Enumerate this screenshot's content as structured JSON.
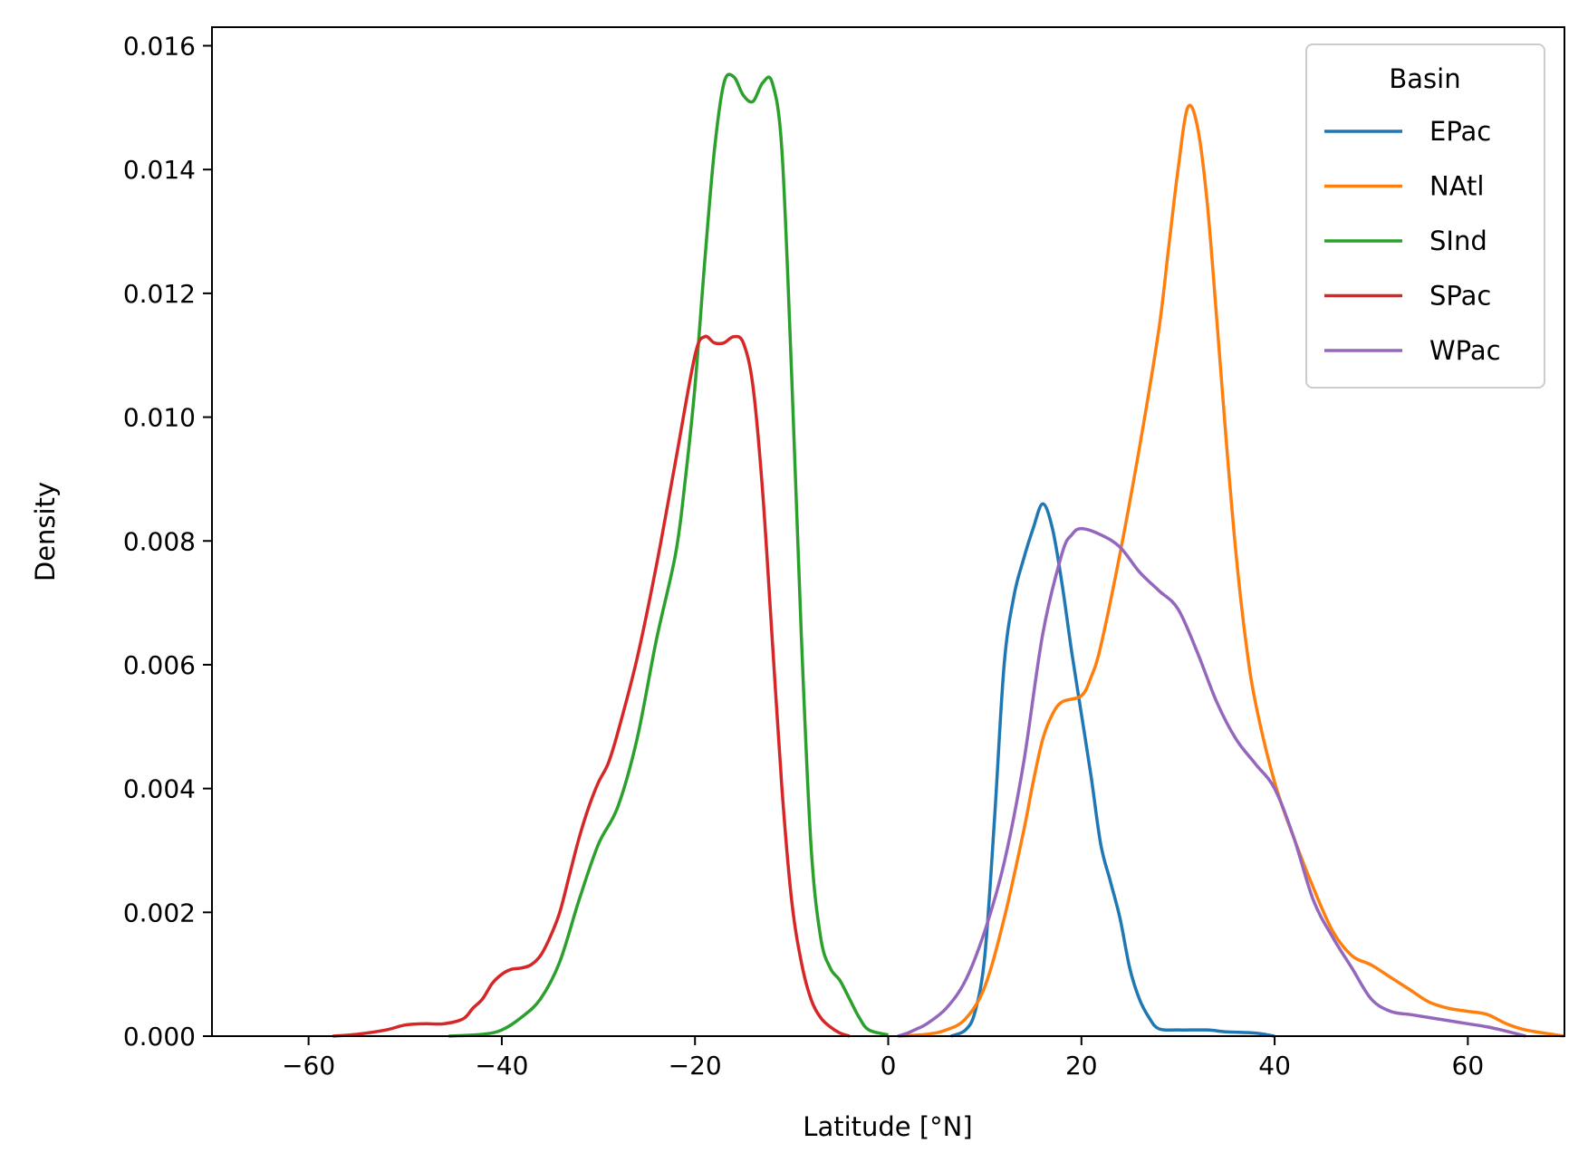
{
  "chart_data": {
    "type": "line",
    "title": "",
    "xlabel": "Latitude [°N]",
    "ylabel": "Density",
    "xlim": [
      -70,
      70
    ],
    "ylim": [
      0,
      0.0163
    ],
    "xticks": [
      -60,
      -40,
      -20,
      0,
      20,
      40,
      60
    ],
    "xtick_labels": [
      "−60",
      "−40",
      "−20",
      "0",
      "20",
      "40",
      "60"
    ],
    "yticks": [
      0,
      0.002,
      0.004,
      0.006,
      0.008,
      0.01,
      0.012,
      0.014,
      0.016
    ],
    "ytick_labels": [
      "0.000",
      "0.002",
      "0.004",
      "0.006",
      "0.008",
      "0.010",
      "0.012",
      "0.014",
      "0.016"
    ],
    "grid": false,
    "legend": {
      "title": "Basin",
      "placement": "top-right"
    },
    "series": [
      {
        "name": "EPac",
        "color": "#1f77b4",
        "points": [
          [
            6.5,
            0
          ],
          [
            8,
            0.0001
          ],
          [
            9,
            0.0004
          ],
          [
            10,
            0.0013
          ],
          [
            11,
            0.0035
          ],
          [
            12,
            0.006
          ],
          [
            13,
            0.0071
          ],
          [
            14,
            0.0077
          ],
          [
            15,
            0.0082
          ],
          [
            16,
            0.0086
          ],
          [
            17,
            0.0082
          ],
          [
            18,
            0.0073
          ],
          [
            19,
            0.0062
          ],
          [
            20,
            0.0052
          ],
          [
            21,
            0.0042
          ],
          [
            22,
            0.0031
          ],
          [
            23,
            0.0025
          ],
          [
            24,
            0.0019
          ],
          [
            25,
            0.0011
          ],
          [
            26,
            0.0006
          ],
          [
            27,
            0.0003
          ],
          [
            28,
            0.00012
          ],
          [
            30,
            0.0001
          ],
          [
            33,
            0.0001
          ],
          [
            35,
            7e-05
          ],
          [
            38,
            5e-05
          ],
          [
            40,
            0
          ]
        ]
      },
      {
        "name": "NAtl",
        "color": "#ff7f0e",
        "points": [
          [
            1,
            0
          ],
          [
            4,
            3e-05
          ],
          [
            6,
            0.0001
          ],
          [
            8,
            0.00028
          ],
          [
            10,
            0.0008
          ],
          [
            12,
            0.0019
          ],
          [
            14,
            0.0033
          ],
          [
            15,
            0.0041
          ],
          [
            16,
            0.0048
          ],
          [
            17,
            0.0052
          ],
          [
            18,
            0.0054
          ],
          [
            20,
            0.0055
          ],
          [
            21,
            0.0058
          ],
          [
            22,
            0.0063
          ],
          [
            24,
            0.0078
          ],
          [
            26,
            0.0095
          ],
          [
            28,
            0.0114
          ],
          [
            29,
            0.0127
          ],
          [
            30,
            0.014
          ],
          [
            31,
            0.015
          ],
          [
            32,
            0.0147
          ],
          [
            33,
            0.0135
          ],
          [
            34,
            0.0116
          ],
          [
            35,
            0.0096
          ],
          [
            36,
            0.0078
          ],
          [
            37,
            0.0064
          ],
          [
            38,
            0.0054
          ],
          [
            40,
            0.0041
          ],
          [
            42,
            0.0032
          ],
          [
            44,
            0.0024
          ],
          [
            46,
            0.0017
          ],
          [
            48,
            0.0013
          ],
          [
            50,
            0.00115
          ],
          [
            52,
            0.00095
          ],
          [
            54,
            0.00075
          ],
          [
            56,
            0.00055
          ],
          [
            58,
            0.00045
          ],
          [
            60,
            0.0004
          ],
          [
            62,
            0.00035
          ],
          [
            64,
            0.0002
          ],
          [
            66,
            0.0001
          ],
          [
            70,
            0
          ]
        ]
      },
      {
        "name": "SInd",
        "color": "#2ca02c",
        "points": [
          [
            -45.5,
            0
          ],
          [
            -42,
            3e-05
          ],
          [
            -40,
            0.0001
          ],
          [
            -38,
            0.0003
          ],
          [
            -36,
            0.0006
          ],
          [
            -34,
            0.0012
          ],
          [
            -32,
            0.0022
          ],
          [
            -30,
            0.0031
          ],
          [
            -28,
            0.0037
          ],
          [
            -26,
            0.0048
          ],
          [
            -24,
            0.0064
          ],
          [
            -22,
            0.0078
          ],
          [
            -21,
            0.009
          ],
          [
            -20,
            0.0105
          ],
          [
            -19,
            0.0125
          ],
          [
            -18,
            0.0143
          ],
          [
            -17,
            0.0154
          ],
          [
            -16,
            0.0155
          ],
          [
            -15,
            0.0152
          ],
          [
            -14,
            0.0151
          ],
          [
            -13,
            0.0154
          ],
          [
            -12,
            0.0154
          ],
          [
            -11,
            0.0143
          ],
          [
            -10,
            0.0107
          ],
          [
            -9,
            0.0065
          ],
          [
            -8,
            0.0031
          ],
          [
            -7,
            0.0016
          ],
          [
            -6,
            0.0011
          ],
          [
            -5,
            0.0009
          ],
          [
            -4,
            0.0006
          ],
          [
            -3,
            0.0003
          ],
          [
            -2,
            0.0001
          ],
          [
            0,
            2e-05
          ]
        ]
      },
      {
        "name": "SPac",
        "color": "#d62728",
        "points": [
          [
            -57.5,
            0
          ],
          [
            -55,
            3e-05
          ],
          [
            -52,
            0.0001
          ],
          [
            -50,
            0.00018
          ],
          [
            -48,
            0.0002
          ],
          [
            -46,
            0.0002
          ],
          [
            -44,
            0.00028
          ],
          [
            -43,
            0.00045
          ],
          [
            -42,
            0.0006
          ],
          [
            -41,
            0.00085
          ],
          [
            -40,
            0.001
          ],
          [
            -39,
            0.00108
          ],
          [
            -38,
            0.0011
          ],
          [
            -37,
            0.00115
          ],
          [
            -36,
            0.0013
          ],
          [
            -35,
            0.0016
          ],
          [
            -34,
            0.002
          ],
          [
            -33,
            0.0026
          ],
          [
            -32,
            0.0032
          ],
          [
            -31,
            0.0037
          ],
          [
            -30,
            0.0041
          ],
          [
            -29,
            0.0044
          ],
          [
            -28,
            0.0049
          ],
          [
            -26,
            0.0061
          ],
          [
            -24,
            0.0076
          ],
          [
            -22,
            0.0093
          ],
          [
            -20,
            0.011
          ],
          [
            -19,
            0.0113
          ],
          [
            -18,
            0.0112
          ],
          [
            -17,
            0.0112
          ],
          [
            -16,
            0.0113
          ],
          [
            -15,
            0.0112
          ],
          [
            -14,
            0.0105
          ],
          [
            -13,
            0.0088
          ],
          [
            -12,
            0.0064
          ],
          [
            -11,
            0.004
          ],
          [
            -10,
            0.0022
          ],
          [
            -9,
            0.0012
          ],
          [
            -8,
            0.0006
          ],
          [
            -7,
            0.0003
          ],
          [
            -6,
            0.00015
          ],
          [
            -5,
            5e-05
          ],
          [
            -4,
            0
          ]
        ]
      },
      {
        "name": "WPac",
        "color": "#9467bd",
        "points": [
          [
            1,
            0
          ],
          [
            2,
            5e-05
          ],
          [
            3,
            0.00012
          ],
          [
            4,
            0.0002
          ],
          [
            6,
            0.00045
          ],
          [
            8,
            0.0009
          ],
          [
            10,
            0.0017
          ],
          [
            12,
            0.0028
          ],
          [
            14,
            0.0044
          ],
          [
            16,
            0.0065
          ],
          [
            18,
            0.0078
          ],
          [
            19,
            0.0081
          ],
          [
            20,
            0.0082
          ],
          [
            22,
            0.0081
          ],
          [
            24,
            0.0079
          ],
          [
            26,
            0.0075
          ],
          [
            28,
            0.0072
          ],
          [
            30,
            0.0069
          ],
          [
            32,
            0.0062
          ],
          [
            34,
            0.0054
          ],
          [
            36,
            0.0048
          ],
          [
            38,
            0.0044
          ],
          [
            40,
            0.004
          ],
          [
            42,
            0.0032
          ],
          [
            44,
            0.0022
          ],
          [
            46,
            0.0016
          ],
          [
            48,
            0.0011
          ],
          [
            50,
            0.0006
          ],
          [
            52,
            0.0004
          ],
          [
            54,
            0.00035
          ],
          [
            56,
            0.0003
          ],
          [
            58,
            0.00025
          ],
          [
            60,
            0.0002
          ],
          [
            62,
            0.00015
          ],
          [
            64,
            8e-05
          ],
          [
            66,
            0
          ]
        ]
      }
    ]
  }
}
